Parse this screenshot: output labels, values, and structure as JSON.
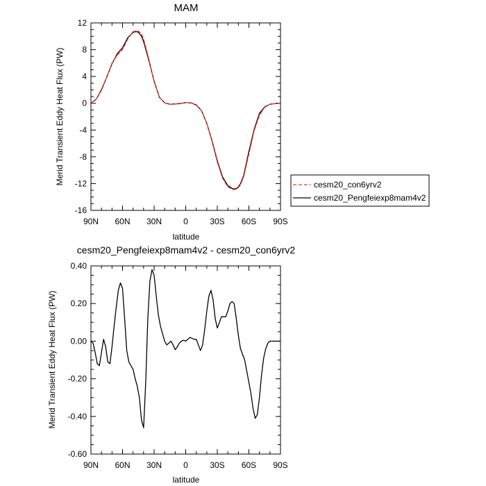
{
  "chart_data": [
    {
      "type": "line",
      "title": "MAM",
      "xlabel": "latitude",
      "ylabel": "Merid Transient Eddy Heat Flux (PW)",
      "xlim": [
        90,
        -90
      ],
      "ylim": [
        -16,
        12
      ],
      "x_ticks": [
        90,
        60,
        30,
        0,
        -30,
        -60,
        -90
      ],
      "x_tick_labels": [
        "90N",
        "60N",
        "30N",
        "0",
        "30S",
        "60S",
        "90S"
      ],
      "y_ticks": [
        -16,
        -12,
        -8,
        -4,
        0,
        4,
        8,
        12
      ],
      "y_tick_labels": [
        "-16",
        "-12",
        "-8",
        "-4",
        "0",
        "4",
        "8",
        "12"
      ],
      "grid": false,
      "legend_position": "right",
      "series": [
        {
          "name": "cesm20_con6yrv2",
          "color": "#e8372c",
          "dash": "dashed",
          "x": [
            90,
            85,
            80,
            75,
            70,
            65,
            60,
            55,
            50,
            47,
            45,
            42,
            40,
            35,
            30,
            25,
            20,
            15,
            10,
            5,
            0,
            -5,
            -10,
            -15,
            -20,
            -25,
            -30,
            -35,
            -40,
            -45,
            -48,
            -50,
            -52,
            -55,
            -60,
            -65,
            -70,
            -75,
            -80,
            -85,
            -90
          ],
          "y": [
            0,
            0.6,
            2.1,
            3.9,
            6.0,
            7.2,
            8.0,
            9.6,
            10.7,
            10.8,
            10.8,
            10.4,
            9.6,
            6.6,
            3.2,
            0.9,
            0.05,
            -0.15,
            -0.1,
            -0.05,
            0.1,
            0.05,
            -0.2,
            -1.1,
            -3.0,
            -5.7,
            -8.8,
            -11.2,
            -12.5,
            -12.9,
            -12.85,
            -12.6,
            -12.2,
            -11.0,
            -7.6,
            -4.1,
            -1.8,
            -0.6,
            -0.15,
            -0.05,
            0
          ]
        },
        {
          "name": "cesm20_Pengfeiexp8mam4v2",
          "color": "#000000",
          "dash": "solid",
          "x": [
            90,
            85,
            80,
            75,
            70,
            65,
            60,
            55,
            50,
            47,
            45,
            42,
            40,
            35,
            30,
            25,
            20,
            15,
            10,
            5,
            0,
            -5,
            -10,
            -15,
            -20,
            -25,
            -30,
            -35,
            -40,
            -45,
            -48,
            -50,
            -52,
            -55,
            -60,
            -65,
            -70,
            -75,
            -80,
            -85,
            -90
          ],
          "y": [
            0,
            0.6,
            2.0,
            3.9,
            5.9,
            7.4,
            8.3,
            9.8,
            10.6,
            10.7,
            10.6,
            10.0,
            9.2,
            6.4,
            3.3,
            0.9,
            0.05,
            -0.15,
            -0.1,
            -0.05,
            0.1,
            0.05,
            -0.25,
            -1.1,
            -3.0,
            -5.6,
            -8.6,
            -11.0,
            -12.3,
            -12.8,
            -12.75,
            -12.5,
            -12.0,
            -10.8,
            -7.2,
            -3.9,
            -1.5,
            -0.55,
            -0.15,
            -0.05,
            0
          ]
        }
      ]
    },
    {
      "type": "line",
      "title": "cesm20_Pengfeiexp8mam4v2 - cesm20_con6yrv2",
      "xlabel": "latitude",
      "ylabel": "Merid Transient Eddy Heat Flux (PW)",
      "xlim": [
        90,
        -90
      ],
      "ylim": [
        -0.6,
        0.4
      ],
      "x_ticks": [
        90,
        60,
        30,
        0,
        -30,
        -60,
        -90
      ],
      "x_tick_labels": [
        "90N",
        "60N",
        "30N",
        "0",
        "30S",
        "60S",
        "90S"
      ],
      "y_ticks": [
        -0.6,
        -0.4,
        -0.2,
        0.0,
        0.2,
        0.4
      ],
      "y_tick_labels": [
        "-0.60",
        "-0.40",
        "-0.20",
        "0.00",
        "0.20",
        "0.40"
      ],
      "grid": false,
      "series": [
        {
          "color": "#000000",
          "dash": "solid",
          "x": [
            90,
            88,
            86,
            84,
            82,
            80,
            78,
            76,
            74,
            72,
            70,
            68,
            66,
            64,
            62,
            60,
            58,
            56,
            54,
            52,
            50,
            48,
            46,
            44,
            42,
            40,
            38,
            36,
            34,
            32,
            30,
            28,
            26,
            24,
            22,
            20,
            18,
            16,
            14,
            12,
            10,
            8,
            6,
            4,
            2,
            0,
            -2,
            -4,
            -6,
            -8,
            -10,
            -12,
            -14,
            -16,
            -18,
            -20,
            -22,
            -24,
            -26,
            -28,
            -30,
            -32,
            -34,
            -36,
            -38,
            -40,
            -42,
            -44,
            -46,
            -48,
            -50,
            -52,
            -54,
            -56,
            -58,
            -60,
            -62,
            -64,
            -66,
            -68,
            -70,
            -72,
            -74,
            -76,
            -78,
            -80,
            -82,
            -84,
            -86,
            -88,
            -90
          ],
          "y": [
            0,
            -0.01,
            -0.06,
            -0.12,
            -0.13,
            -0.06,
            0.01,
            -0.03,
            -0.11,
            -0.12,
            -0.03,
            0.08,
            0.18,
            0.27,
            0.31,
            0.28,
            0.12,
            -0.05,
            -0.11,
            -0.13,
            -0.15,
            -0.2,
            -0.24,
            -0.3,
            -0.42,
            -0.46,
            -0.22,
            0.12,
            0.32,
            0.38,
            0.35,
            0.24,
            0.14,
            0.08,
            0.04,
            0.0,
            -0.02,
            -0.01,
            0.0,
            -0.02,
            -0.045,
            -0.03,
            -0.01,
            0.0,
            0.005,
            0.0,
            0.01,
            0.02,
            0.015,
            0.01,
            0.01,
            -0.02,
            -0.05,
            -0.02,
            0.06,
            0.16,
            0.24,
            0.27,
            0.22,
            0.12,
            0.07,
            0.1,
            0.13,
            0.13,
            0.13,
            0.16,
            0.2,
            0.21,
            0.2,
            0.12,
            0.03,
            -0.04,
            -0.07,
            -0.1,
            -0.16,
            -0.22,
            -0.28,
            -0.36,
            -0.41,
            -0.39,
            -0.3,
            -0.18,
            -0.09,
            -0.04,
            -0.01,
            0.0,
            0.0,
            0.0,
            0.0,
            0.0,
            0.0
          ]
        }
      ]
    }
  ]
}
